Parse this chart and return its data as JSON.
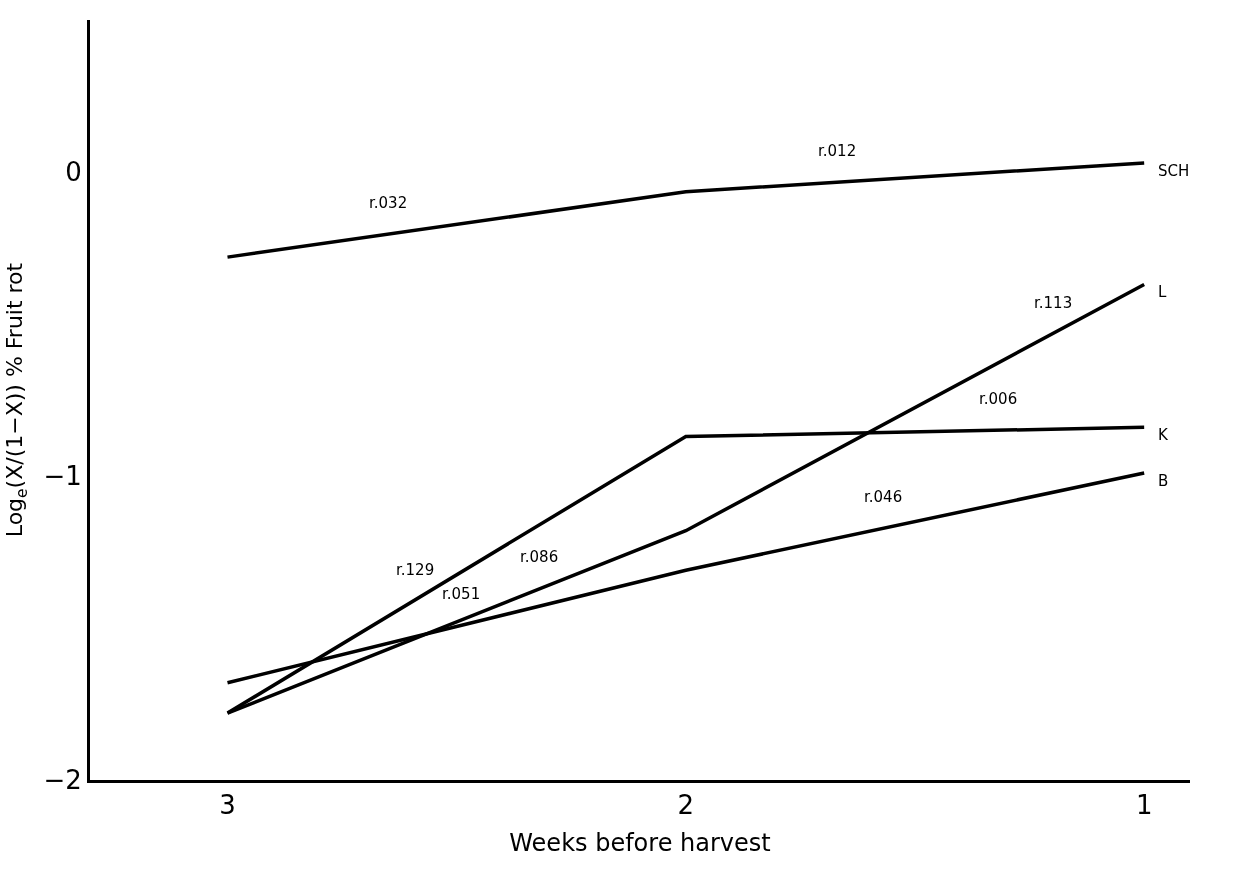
{
  "chart_data": {
    "type": "line",
    "xlabel": "Weeks before harvest",
    "ylabel": "Log$_{e}$(X/(1−X)) % Fruit rot",
    "x": [
      3,
      2,
      1
    ],
    "series": [
      {
        "name": "SCH",
        "color": "#000000",
        "values": [
          -0.28,
          -0.065,
          0.03
        ]
      },
      {
        "name": "L",
        "color": "#000000",
        "values": [
          -1.78,
          -1.18,
          -0.37
        ]
      },
      {
        "name": "K",
        "color": "#000000",
        "values": [
          -1.78,
          -0.87,
          -0.84
        ]
      },
      {
        "name": "B",
        "color": "#000000",
        "values": [
          -1.68,
          -1.31,
          -0.99
        ]
      }
    ],
    "xlim": [
      3.3,
      0.9
    ],
    "ylim": [
      -2,
      0.5
    ],
    "xticks": [
      3,
      2,
      1
    ],
    "yticks": [
      0,
      {
        "value": -1,
        "label": "−1"
      },
      {
        "value": -2,
        "label": "−2"
      }
    ],
    "legend": false,
    "marker": "none",
    "line_style": "solid",
    "annotations": [
      {
        "text": "r.032",
        "x": 2.65,
        "y": -0.205
      },
      {
        "text": "r.012",
        "x": 1.67,
        "y": -0.034
      },
      {
        "text": "r.006",
        "x": 1.32,
        "y": -0.85
      },
      {
        "text": "r.113",
        "x": 1.2,
        "y": -0.532
      },
      {
        "text": "r.046",
        "x": 1.57,
        "y": -1.17
      },
      {
        "text": "r.129",
        "x": 2.59,
        "y": -1.41
      },
      {
        "text": "r.086",
        "x": 2.32,
        "y": -1.37
      },
      {
        "text": "r.051",
        "x": 2.49,
        "y": -1.49
      }
    ]
  }
}
